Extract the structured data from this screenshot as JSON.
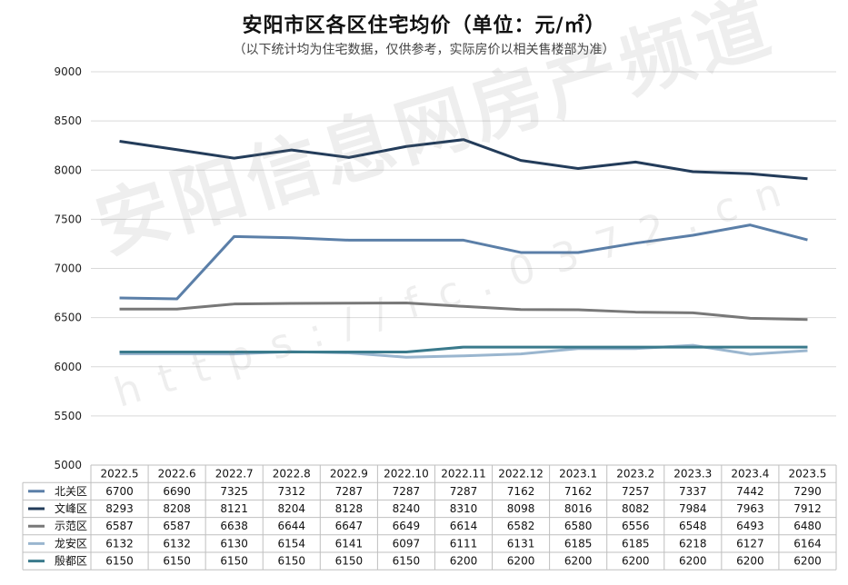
{
  "chart_data": {
    "type": "line",
    "title": "安阳市区各区住宅均价（单位：元/㎡）",
    "subtitle": "（以下统计均为住宅数据，仅供参考，实际房价以相关售楼部为准）",
    "categories": [
      "2022.5",
      "2022.6",
      "2022.7",
      "2022.8",
      "2022.9",
      "2022.10",
      "2022.11",
      "2022.12",
      "2023.1",
      "2023.2",
      "2023.3",
      "2023.4",
      "2023.5"
    ],
    "ylim": [
      5000,
      9000
    ],
    "yticks": [
      5000,
      5500,
      6000,
      6500,
      7000,
      7500,
      8000,
      8500,
      9000
    ],
    "grid": true,
    "legend": "data-table-bottom",
    "series": [
      {
        "name": "北关区",
        "color": "#5b7fa8",
        "values": [
          6700,
          6690,
          7325,
          7312,
          7287,
          7287,
          7287,
          7162,
          7162,
          7257,
          7337,
          7442,
          7290
        ]
      },
      {
        "name": "文峰区",
        "color": "#233c5a",
        "values": [
          8293,
          8208,
          8121,
          8204,
          8128,
          8240,
          8310,
          8098,
          8016,
          8082,
          7984,
          7963,
          7912
        ]
      },
      {
        "name": "示范区",
        "color": "#787878",
        "values": [
          6587,
          6587,
          6638,
          6644,
          6647,
          6649,
          6614,
          6582,
          6580,
          6556,
          6548,
          6493,
          6480
        ]
      },
      {
        "name": "龙安区",
        "color": "#9ab6cf",
        "values": [
          6132,
          6132,
          6130,
          6154,
          6141,
          6097,
          6111,
          6131,
          6185,
          6185,
          6218,
          6127,
          6164
        ]
      },
      {
        "name": "殷都区",
        "color": "#3a7a8c",
        "values": [
          6150,
          6150,
          6150,
          6150,
          6150,
          6150,
          6200,
          6200,
          6200,
          6200,
          6200,
          6200,
          6200
        ]
      }
    ]
  },
  "watermark": {
    "text": "安阳信息网房产频道",
    "url": "https://fc.0372.cn"
  }
}
